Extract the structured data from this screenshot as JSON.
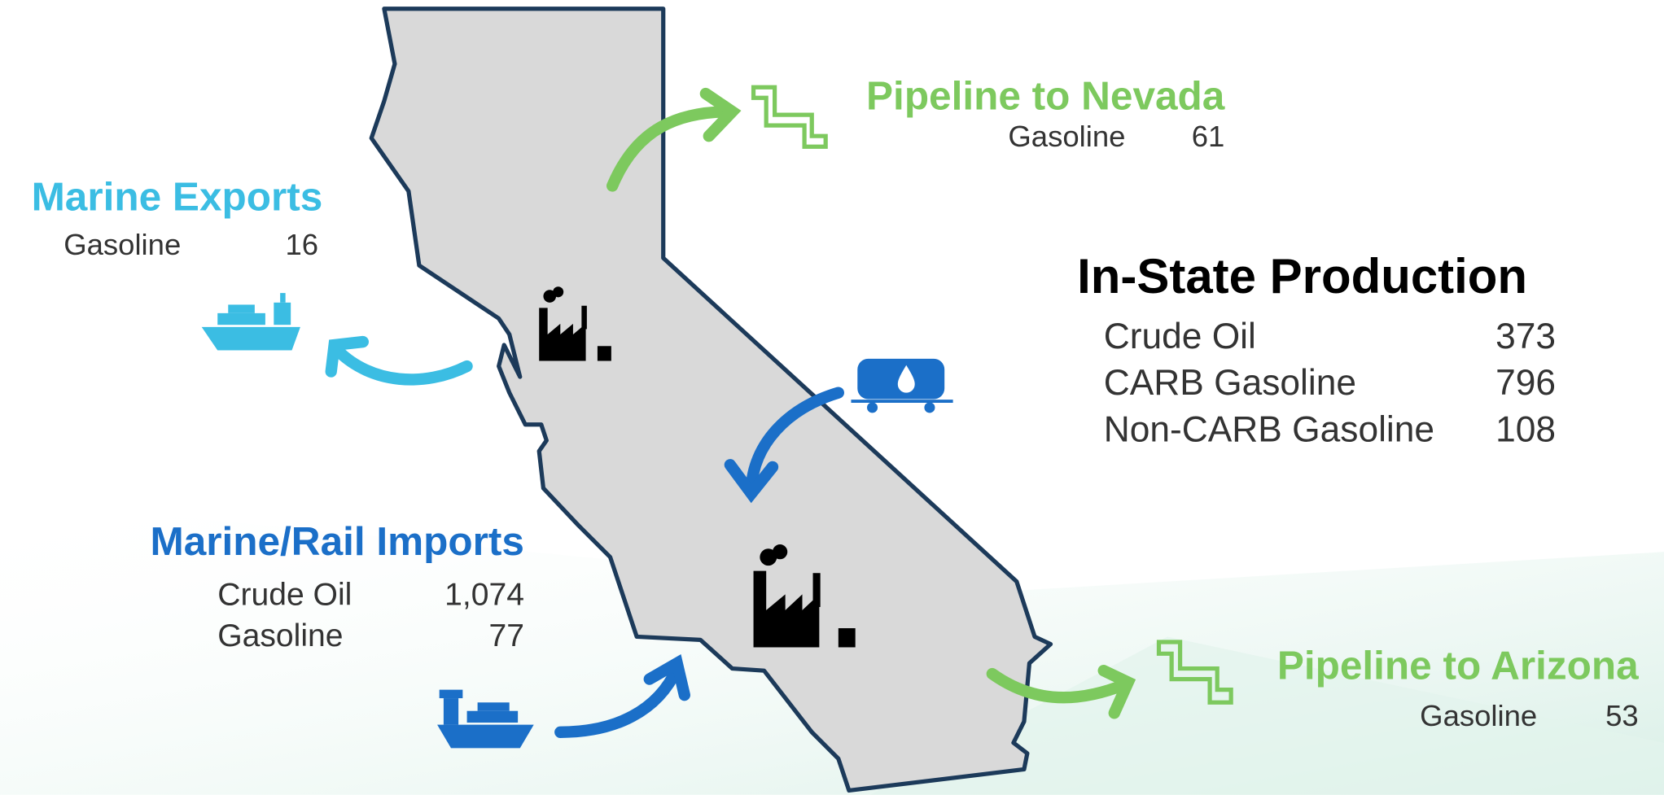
{
  "pipeline_nevada": {
    "title": "Pipeline to Nevada",
    "rows": [
      [
        "Gasoline",
        "61"
      ]
    ]
  },
  "marine_exports": {
    "title": "Marine Exports",
    "rows": [
      [
        "Gasoline",
        "16"
      ]
    ]
  },
  "in_state_production": {
    "title": "In-State Production",
    "rows": [
      [
        "Crude Oil",
        "373"
      ],
      [
        "CARB Gasoline",
        "796"
      ],
      [
        "Non-CARB Gasoline",
        "108"
      ]
    ]
  },
  "marine_rail_imports": {
    "title": "Marine/Rail Imports",
    "rows": [
      [
        "Crude Oil",
        "1,074"
      ],
      [
        "Gasoline",
        "77"
      ]
    ]
  },
  "pipeline_arizona": {
    "title": "Pipeline to Arizona",
    "rows": [
      [
        "Gasoline",
        "53"
      ]
    ]
  }
}
